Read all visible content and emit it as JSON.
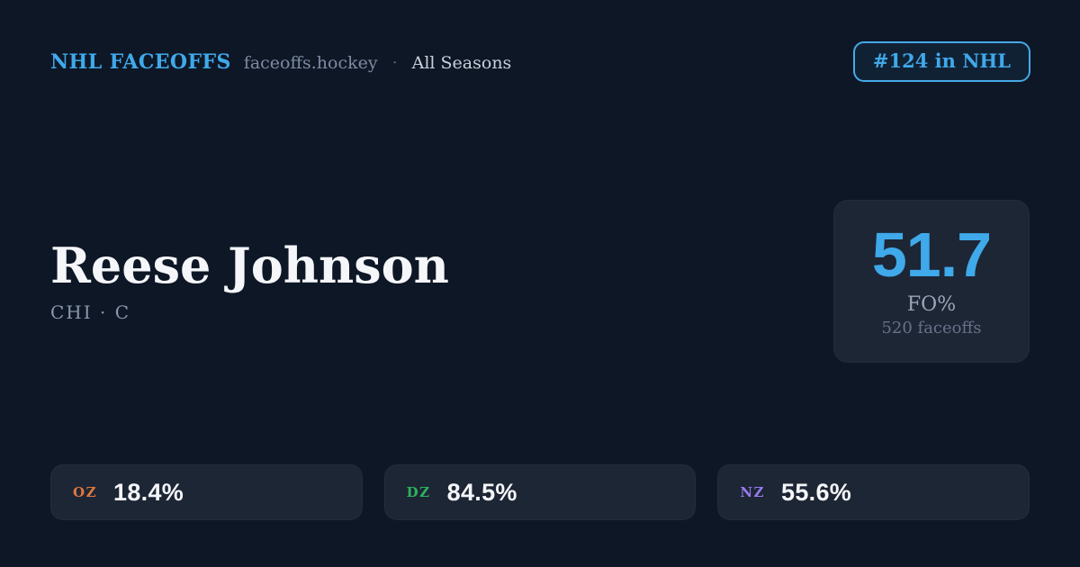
{
  "colors": {
    "background": "#0e1726",
    "card": "#1d2635",
    "accent_blue": "#3fa9ea",
    "oz_orange": "#e0773d",
    "dz_green": "#2cb35c",
    "nz_purple": "#9678ee"
  },
  "header": {
    "brand": "NHL FACEOFFS",
    "site": "faceoffs.hockey",
    "separator": "·",
    "season": "All Seasons",
    "rank_badge": "#124 in NHL"
  },
  "player": {
    "name": "Reese Johnson",
    "team_position": "CHI · C"
  },
  "faceoff_summary": {
    "value": "51.7",
    "label": "FO%",
    "count": "520 faceoffs"
  },
  "zones": [
    {
      "code": "OZ",
      "value": "18.4%",
      "color": "#e0773d"
    },
    {
      "code": "DZ",
      "value": "84.5%",
      "color": "#2cb35c"
    },
    {
      "code": "NZ",
      "value": "55.6%",
      "color": "#9678ee"
    }
  ]
}
